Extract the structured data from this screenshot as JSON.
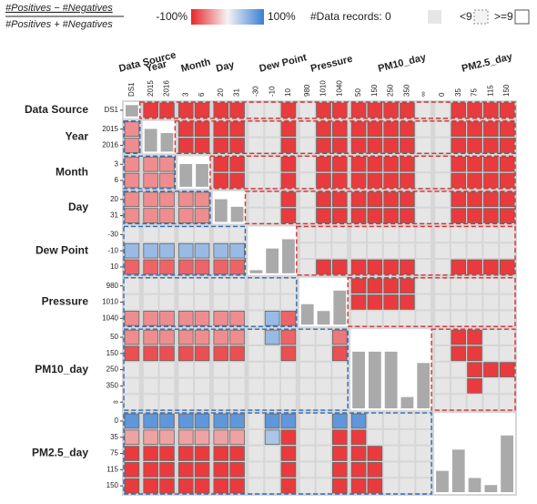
{
  "chart_data": {
    "type": "matrix",
    "legend": {
      "numerator": "#Positives − #Negatives",
      "denominator": "#Positives + #Negatives",
      "ticks": [
        {
          "value": -100,
          "label": "-100%"
        },
        {
          "value": 100,
          "label": "100%"
        }
      ],
      "colors": [
        "#e8262a",
        "#f4f4f4",
        "#3b7fd4"
      ],
      "records_label": "#Data records: 0",
      "small_label": "<9",
      "large_label": ">=9"
    },
    "empty_color": "#e6e6e6",
    "histogram_color": "#aaaaaa",
    "groups": [
      {
        "name": "Data Source",
        "bins": [
          "DS1"
        ],
        "histogram": [
          100
        ]
      },
      {
        "name": "Year",
        "bins": [
          "2015",
          "2016"
        ],
        "histogram": [
          55,
          45
        ]
      },
      {
        "name": "Month",
        "bins": [
          "3",
          "6"
        ],
        "histogram": [
          50,
          50
        ]
      },
      {
        "name": "Day",
        "bins": [
          "20",
          "31"
        ],
        "histogram": [
          60,
          40
        ]
      },
      {
        "name": "Dew Point",
        "bins": [
          "-30",
          "-10",
          "10"
        ],
        "histogram": [
          5,
          40,
          55
        ]
      },
      {
        "name": "Pressure",
        "bins": [
          "980",
          "1010",
          "1040"
        ],
        "histogram": [
          30,
          20,
          50
        ]
      },
      {
        "name": "PM10_day",
        "bins": [
          "50",
          "150",
          "250",
          "350",
          "∞"
        ],
        "histogram": [
          25,
          25,
          25,
          5,
          20
        ]
      },
      {
        "name": "PM2.5_day",
        "bins": [
          "0",
          "35",
          "75",
          "115",
          "150"
        ],
        "histogram": [
          15,
          30,
          10,
          5,
          40
        ]
      }
    ],
    "cells": [
      [
        null,
        -90,
        -90,
        -90,
        -90,
        -90,
        -90,
        null,
        null,
        -90,
        null,
        -90,
        -90,
        -90,
        -90,
        -90,
        -90,
        null,
        null,
        -90,
        -90,
        -90,
        -90
      ],
      [
        -50,
        null,
        null,
        -90,
        -90,
        -90,
        -90,
        null,
        null,
        -90,
        null,
        -90,
        -90,
        -90,
        -90,
        -90,
        -90,
        null,
        null,
        -90,
        -90,
        -90,
        -90
      ],
      [
        -50,
        null,
        null,
        -90,
        -90,
        -90,
        -90,
        null,
        null,
        -90,
        null,
        -90,
        -90,
        -90,
        -90,
        -90,
        -90,
        null,
        null,
        -90,
        -90,
        -90,
        -90
      ],
      [
        -50,
        -50,
        -50,
        null,
        null,
        -90,
        -90,
        null,
        null,
        -90,
        null,
        -90,
        -90,
        -90,
        -90,
        -90,
        -90,
        null,
        null,
        -90,
        -90,
        -90,
        -90
      ],
      [
        -50,
        -50,
        -50,
        null,
        null,
        -90,
        -90,
        null,
        null,
        -90,
        null,
        -90,
        -90,
        -90,
        -90,
        -90,
        -90,
        null,
        null,
        -90,
        -90,
        -90,
        -90
      ],
      [
        -50,
        -50,
        -50,
        -50,
        -50,
        null,
        null,
        null,
        null,
        -90,
        null,
        -90,
        -90,
        -90,
        -90,
        -90,
        -90,
        null,
        null,
        -90,
        -90,
        -90,
        -90
      ],
      [
        -50,
        -50,
        -50,
        -50,
        -50,
        null,
        null,
        null,
        null,
        -90,
        null,
        -90,
        -90,
        -90,
        -90,
        -90,
        -90,
        null,
        null,
        -90,
        -90,
        -90,
        -90
      ],
      [
        null,
        null,
        null,
        null,
        null,
        null,
        null,
        null,
        null,
        null,
        null,
        null,
        null,
        null,
        null,
        null,
        null,
        null,
        null,
        null,
        null,
        null,
        null
      ],
      [
        50,
        50,
        50,
        50,
        50,
        50,
        50,
        null,
        null,
        null,
        null,
        null,
        null,
        null,
        null,
        null,
        null,
        null,
        null,
        null,
        null,
        null,
        null
      ],
      [
        -70,
        -70,
        -70,
        -70,
        -70,
        -70,
        -70,
        null,
        null,
        null,
        null,
        -90,
        -90,
        -90,
        -90,
        -90,
        -90,
        null,
        null,
        -90,
        -90,
        -90,
        -90
      ],
      [
        null,
        null,
        null,
        null,
        null,
        null,
        null,
        null,
        null,
        null,
        null,
        null,
        null,
        -90,
        -90,
        -90,
        -90,
        null,
        null,
        null,
        null,
        null,
        null
      ],
      [
        null,
        null,
        null,
        null,
        null,
        null,
        null,
        null,
        null,
        null,
        null,
        null,
        null,
        -90,
        -90,
        -90,
        -90,
        null,
        null,
        null,
        null,
        null,
        null
      ],
      [
        -50,
        -50,
        -50,
        -50,
        -50,
        -50,
        -50,
        null,
        50,
        -70,
        null,
        null,
        null,
        null,
        null,
        null,
        null,
        null,
        null,
        null,
        null,
        null,
        null
      ],
      [
        -50,
        -50,
        -50,
        -50,
        -50,
        -50,
        -50,
        null,
        50,
        -70,
        null,
        null,
        -60,
        null,
        null,
        null,
        null,
        null,
        null,
        -90,
        -90,
        null,
        null
      ],
      [
        -80,
        -80,
        -80,
        -80,
        -80,
        -80,
        -80,
        null,
        null,
        -80,
        null,
        null,
        -80,
        null,
        null,
        null,
        null,
        null,
        null,
        -90,
        -90,
        null,
        null
      ],
      [
        null,
        null,
        null,
        null,
        null,
        null,
        null,
        null,
        null,
        null,
        null,
        null,
        null,
        null,
        null,
        null,
        null,
        null,
        null,
        null,
        -90,
        -90,
        -90
      ],
      [
        null,
        null,
        null,
        null,
        null,
        null,
        null,
        null,
        null,
        null,
        null,
        null,
        null,
        null,
        null,
        null,
        null,
        null,
        null,
        null,
        -90,
        null,
        null
      ],
      [
        null,
        null,
        null,
        null,
        null,
        null,
        null,
        null,
        null,
        null,
        null,
        null,
        null,
        null,
        null,
        null,
        null,
        null,
        null,
        null,
        null,
        null,
        null
      ],
      [
        80,
        80,
        80,
        80,
        80,
        80,
        80,
        null,
        80,
        80,
        null,
        null,
        80,
        80,
        null,
        null,
        null,
        null,
        null,
        null,
        null,
        null,
        null
      ],
      [
        -40,
        -40,
        -40,
        -40,
        -40,
        -40,
        -40,
        null,
        40,
        -90,
        null,
        null,
        -90,
        -90,
        null,
        null,
        null,
        null,
        null,
        null,
        null,
        null,
        null
      ],
      [
        -90,
        -90,
        -90,
        -90,
        -90,
        -90,
        -90,
        null,
        null,
        -90,
        null,
        null,
        -90,
        -90,
        -90,
        null,
        null,
        null,
        null,
        null,
        null,
        null,
        null
      ],
      [
        -90,
        -90,
        -90,
        -90,
        -90,
        -90,
        -90,
        null,
        null,
        -90,
        null,
        null,
        -90,
        -90,
        -90,
        null,
        null,
        null,
        null,
        null,
        null,
        null,
        null
      ],
      [
        -90,
        -90,
        -90,
        -90,
        -90,
        -90,
        -90,
        null,
        null,
        -90,
        null,
        null,
        -90,
        -90,
        -90,
        null,
        null,
        null,
        null,
        null,
        null,
        null,
        null
      ]
    ]
  }
}
